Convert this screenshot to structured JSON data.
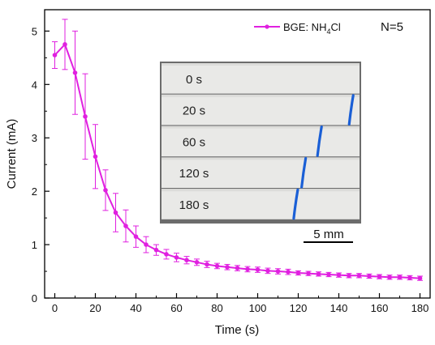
{
  "chart_data": {
    "type": "line",
    "xlabel": "Time (s)",
    "ylabel": "Current (mA)",
    "xlim": [
      -5,
      185
    ],
    "ylim": [
      0,
      5.4
    ],
    "x_ticks": [
      0,
      20,
      40,
      60,
      80,
      100,
      120,
      140,
      160,
      180
    ],
    "y_ticks": [
      0,
      1,
      2,
      3,
      4,
      5
    ],
    "grid": false,
    "legend": {
      "placement": "top-right",
      "label_prefix": "BGE: NH",
      "label_sub": "4",
      "label_suffix": "Cl",
      "note": "N=5"
    },
    "series": [
      {
        "color": "#e020e0",
        "x": [
          0,
          5,
          10,
          15,
          20,
          25,
          30,
          35,
          40,
          45,
          50,
          55,
          60,
          65,
          70,
          75,
          80,
          85,
          90,
          95,
          100,
          105,
          110,
          115,
          120,
          125,
          130,
          135,
          140,
          145,
          150,
          155,
          160,
          165,
          170,
          175,
          180
        ],
        "y": [
          4.55,
          4.75,
          4.22,
          3.4,
          2.65,
          2.02,
          1.6,
          1.35,
          1.15,
          1.0,
          0.9,
          0.82,
          0.76,
          0.71,
          0.67,
          0.63,
          0.6,
          0.58,
          0.56,
          0.54,
          0.53,
          0.51,
          0.5,
          0.49,
          0.47,
          0.46,
          0.45,
          0.44,
          0.43,
          0.42,
          0.42,
          0.41,
          0.4,
          0.39,
          0.39,
          0.38,
          0.37
        ],
        "error": [
          0.25,
          0.47,
          0.78,
          0.8,
          0.6,
          0.38,
          0.36,
          0.3,
          0.2,
          0.15,
          0.1,
          0.09,
          0.08,
          0.07,
          0.06,
          0.06,
          0.05,
          0.05,
          0.05,
          0.05,
          0.05,
          0.05,
          0.05,
          0.05,
          0.04,
          0.04,
          0.04,
          0.04,
          0.04,
          0.04,
          0.04,
          0.04,
          0.04,
          0.04,
          0.04,
          0.04,
          0.04
        ]
      }
    ]
  },
  "inset": {
    "strips": [
      {
        "label": "0 s",
        "band_fraction": null
      },
      {
        "label": "20 s",
        "band_fraction": 0.96
      },
      {
        "label": "60 s",
        "band_fraction": 0.8
      },
      {
        "label": "120 s",
        "band_fraction": 0.72
      },
      {
        "label": "180 s",
        "band_fraction": 0.68
      }
    ],
    "band_color": "#1a5fd6",
    "scale_bar_label": "5 mm"
  }
}
